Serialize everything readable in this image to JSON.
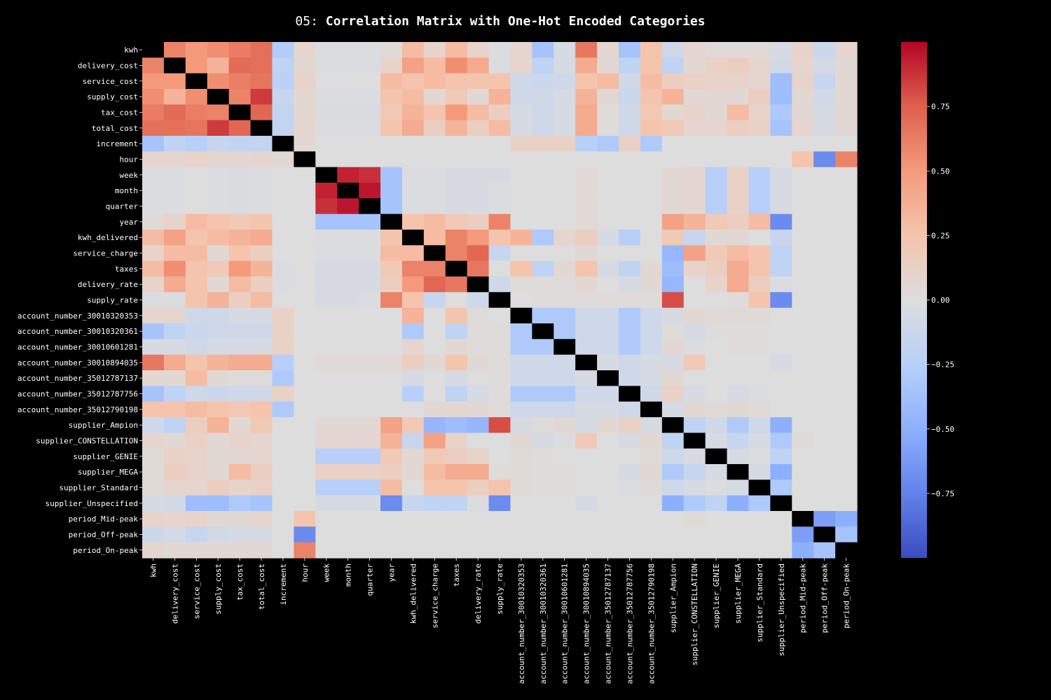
{
  "title_prefix": "05:",
  "title_main": "Correlation Matrix with One-Hot Encoded Categories",
  "chart_data": {
    "type": "heatmap",
    "title": "05: Correlation Matrix with One-Hot Encoded Categories",
    "colormap": "coolwarm",
    "diagonal_color": "#000000",
    "vmin": -1,
    "vmax": 1,
    "colorbar_ticks": [
      0.75,
      0.5,
      0.25,
      0.0,
      -0.25,
      -0.5,
      -0.75
    ],
    "colorbar_tick_labels": [
      "0.75",
      "0.50",
      "0.25",
      "0.00",
      "−0.25",
      "−0.50",
      "−0.75"
    ],
    "labels": [
      "kwh",
      "delivery_cost",
      "service_cost",
      "supply_cost",
      "tax_cost",
      "total_cost",
      "increment",
      "hour",
      "week",
      "month",
      "quarter",
      "year",
      "kwh_delivered",
      "service_charge",
      "taxes",
      "delivery_rate",
      "supply_rate",
      "account_number_30010320353",
      "account_number_30010320361",
      "account_number_30010601281",
      "account_number_30010894035",
      "account_number_35012787137",
      "account_number_35012787756",
      "account_number_35012790198",
      "supplier_Ampion",
      "supplier_CONSTELLATION",
      "supplier_GENIE",
      "supplier_MEGA",
      "supplier_Standard",
      "supplier_Unspecified",
      "period_Mid-peak",
      "period_Off-peak",
      "period_On-peak"
    ],
    "values": [
      [
        1,
        0.6,
        0.5,
        0.55,
        0.63,
        0.68,
        -0.28,
        0.08,
        -0.02,
        -0.02,
        -0.02,
        0.03,
        0.3,
        0.1,
        0.3,
        0.1,
        -0.02,
        0.08,
        -0.35,
        -0.05,
        0.65,
        0.06,
        -0.35,
        0.25,
        -0.1,
        0.08,
        0.03,
        0.03,
        0.03,
        -0.05,
        0.1,
        -0.12,
        0.08
      ],
      [
        0.6,
        1,
        0.5,
        0.35,
        0.7,
        0.68,
        -0.2,
        0.06,
        -0.02,
        -0.02,
        -0.02,
        0.1,
        0.45,
        0.3,
        0.55,
        0.4,
        -0.02,
        0.08,
        -0.2,
        -0.05,
        0.4,
        0.05,
        -0.2,
        0.25,
        -0.2,
        0.05,
        0.12,
        0.15,
        0.08,
        -0.08,
        0.08,
        -0.07,
        0.05
      ],
      [
        0.5,
        0.5,
        1,
        0.55,
        0.62,
        0.66,
        -0.23,
        0.1,
        0,
        0,
        0,
        0.3,
        0.25,
        0.3,
        0.25,
        0.25,
        0.25,
        -0.1,
        -0.12,
        -0.1,
        0.25,
        0.3,
        -0.1,
        0.3,
        0.15,
        0.12,
        0.1,
        0.1,
        0.08,
        -0.4,
        0.1,
        -0.15,
        0.05
      ],
      [
        0.55,
        0.35,
        0.55,
        1,
        0.6,
        0.85,
        -0.15,
        0.06,
        -0.02,
        -0.02,
        -0.02,
        0.25,
        0.3,
        0.05,
        0.2,
        0.05,
        0.35,
        -0.1,
        -0.1,
        -0.05,
        0.35,
        0.05,
        -0.12,
        0.25,
        0.35,
        0.05,
        0.05,
        0.05,
        0.15,
        -0.4,
        0.05,
        -0.08,
        0.05
      ],
      [
        0.63,
        0.7,
        0.62,
        0.6,
        1,
        0.72,
        -0.18,
        0.06,
        -0.03,
        -0.03,
        -0.03,
        0.2,
        0.35,
        0.25,
        0.5,
        0.3,
        0.15,
        -0.05,
        -0.1,
        -0.05,
        0.4,
        0.02,
        -0.1,
        0.22,
        0.05,
        0.1,
        0.05,
        0.3,
        0.1,
        -0.3,
        0.05,
        -0.05,
        0.05
      ],
      [
        0.68,
        0.68,
        0.66,
        0.85,
        0.72,
        1,
        -0.18,
        0.08,
        -0.02,
        -0.02,
        -0.02,
        0.25,
        0.4,
        0.15,
        0.35,
        0.15,
        0.3,
        -0.05,
        -0.1,
        -0.05,
        0.4,
        0.02,
        -0.1,
        0.25,
        0.2,
        0.08,
        0.08,
        0.15,
        0.12,
        -0.35,
        0.08,
        -0.05,
        0.05
      ],
      [
        -0.35,
        -0.2,
        -0.25,
        -0.15,
        -0.18,
        -0.18,
        1,
        0.05,
        0,
        0,
        0,
        0,
        0,
        0,
        0,
        0,
        0,
        0.12,
        0.12,
        0.12,
        -0.25,
        -0.3,
        0.12,
        -0.3,
        0,
        0,
        0,
        0,
        0,
        0,
        0,
        0,
        0
      ],
      [
        0.08,
        0.08,
        0.1,
        0.06,
        0.06,
        0.08,
        0.05,
        1,
        0,
        0,
        0,
        0,
        0,
        0,
        0,
        0,
        0,
        0,
        0,
        0,
        0,
        0,
        0,
        0,
        0,
        0,
        0,
        0,
        0,
        0,
        0.25,
        -0.7,
        0.6
      ],
      [
        -0.02,
        -0.02,
        0,
        -0.02,
        -0.03,
        -0.02,
        0,
        0,
        1,
        0.92,
        0.88,
        -0.35,
        -0.02,
        -0.02,
        -0.04,
        -0.04,
        -0.04,
        0,
        0,
        0,
        0.04,
        0,
        0,
        0,
        0.05,
        0.07,
        -0.25,
        0.12,
        -0.25,
        -0.05,
        0,
        0,
        0
      ],
      [
        -0.02,
        -0.02,
        0,
        -0.02,
        -0.03,
        -0.02,
        0,
        0,
        0.92,
        1,
        0.95,
        -0.35,
        -0.02,
        -0.02,
        -0.04,
        -0.04,
        -0.02,
        0,
        0,
        0,
        0.04,
        0,
        0,
        0,
        0.05,
        0.07,
        -0.25,
        0.12,
        -0.25,
        -0.05,
        0,
        0,
        0
      ],
      [
        -0.02,
        -0.02,
        0,
        -0.02,
        -0.03,
        -0.02,
        0,
        0,
        0.88,
        0.95,
        1,
        -0.35,
        -0.02,
        -0.02,
        -0.04,
        -0.04,
        -0.02,
        0,
        0,
        0,
        0.04,
        0,
        0,
        0,
        0.05,
        0.07,
        -0.25,
        0.12,
        -0.25,
        -0.05,
        0,
        0,
        0
      ],
      [
        0.03,
        0.1,
        0.3,
        0.25,
        0.2,
        0.25,
        0,
        0,
        -0.35,
        -0.35,
        -0.35,
        1,
        0.25,
        0.3,
        0.2,
        0.15,
        0.6,
        0,
        0,
        0,
        0.04,
        0,
        0,
        0,
        0.45,
        0.35,
        0.2,
        0.15,
        0.3,
        -0.7,
        0,
        0,
        0
      ],
      [
        0.3,
        0.45,
        0.25,
        0.3,
        0.35,
        0.4,
        0,
        0,
        -0.02,
        -0.02,
        -0.02,
        0.25,
        1,
        0.3,
        0.6,
        0.5,
        0.25,
        0.35,
        -0.3,
        0.08,
        0.15,
        -0.05,
        -0.25,
        0,
        0.2,
        -0.15,
        0.05,
        0.05,
        0,
        -0.15,
        0,
        0,
        0
      ],
      [
        0.1,
        0.3,
        0.3,
        0.05,
        0.25,
        0.15,
        0,
        0,
        -0.02,
        -0.02,
        -0.02,
        0.3,
        0.3,
        1,
        0.6,
        0.72,
        -0.15,
        0,
        0,
        0,
        0.05,
        0,
        0,
        0,
        -0.45,
        0.45,
        0.2,
        0.3,
        0.25,
        -0.2,
        0,
        0,
        0
      ],
      [
        0.3,
        0.55,
        0.25,
        0.2,
        0.5,
        0.35,
        -0.02,
        0,
        -0.04,
        -0.04,
        -0.04,
        0.2,
        0.6,
        0.6,
        1,
        0.65,
        0,
        0.25,
        -0.2,
        0.05,
        0.25,
        -0.05,
        -0.2,
        0.05,
        -0.4,
        0.1,
        0.15,
        0.4,
        0.25,
        -0.2,
        0,
        0,
        0
      ],
      [
        0.1,
        0.4,
        0.25,
        0.05,
        0.3,
        0.15,
        -0.02,
        0,
        -0.04,
        -0.04,
        -0.04,
        0.15,
        0.5,
        0.72,
        0.65,
        1,
        -0.1,
        0.02,
        0.02,
        0.02,
        0.05,
        0,
        -0.05,
        0.05,
        -0.45,
        0,
        0.1,
        0.4,
        0.15,
        -0.02,
        0,
        0,
        0
      ],
      [
        -0.02,
        -0.02,
        0.25,
        0.35,
        0.15,
        0.3,
        0,
        0,
        -0.04,
        -0.04,
        -0.02,
        0.6,
        0.25,
        -0.15,
        0,
        -0.1,
        1,
        0,
        0.02,
        0.02,
        0.02,
        0.02,
        0.02,
        0.02,
        0.8,
        0,
        0,
        0.02,
        0.25,
        -0.7,
        0,
        0,
        0
      ],
      [
        0.08,
        0.08,
        -0.1,
        -0.1,
        -0.05,
        -0.05,
        0.12,
        0,
        0,
        0,
        0,
        0,
        0.35,
        0,
        0.25,
        0.02,
        0,
        1,
        -0.3,
        -0.3,
        -0.1,
        -0.1,
        -0.3,
        -0.1,
        -0.05,
        0.05,
        0.03,
        0.03,
        0.03,
        0,
        0,
        0,
        0
      ],
      [
        -0.35,
        -0.2,
        -0.12,
        -0.1,
        -0.1,
        -0.1,
        0.12,
        0,
        0,
        0,
        0,
        0,
        -0.3,
        0,
        -0.2,
        0.02,
        0.02,
        -0.3,
        1,
        -0.3,
        -0.1,
        -0.1,
        -0.3,
        -0.1,
        0.02,
        -0.05,
        0.02,
        0.02,
        0.02,
        0,
        0,
        0,
        0
      ],
      [
        -0.05,
        -0.05,
        -0.1,
        -0.05,
        -0.05,
        -0.05,
        0.12,
        0,
        0,
        0,
        0,
        0,
        0.08,
        0,
        0.05,
        0.02,
        0.02,
        -0.3,
        -0.3,
        1,
        -0.1,
        -0.1,
        -0.3,
        -0.1,
        0.05,
        -0.02,
        0,
        0.02,
        0.02,
        0,
        0,
        0,
        0
      ],
      [
        0.65,
        0.4,
        0.25,
        0.35,
        0.4,
        0.4,
        -0.25,
        0,
        0.04,
        0.04,
        0.04,
        0.04,
        0.15,
        0.05,
        0.25,
        0.05,
        0.02,
        -0.1,
        -0.1,
        -0.1,
        1,
        -0.05,
        -0.1,
        -0.05,
        -0.05,
        0.2,
        0,
        0,
        0,
        -0.05,
        0,
        0,
        0
      ],
      [
        0.06,
        0.05,
        0.3,
        0.05,
        0.02,
        0.02,
        -0.3,
        0,
        0,
        0,
        0,
        0,
        -0.05,
        0,
        -0.05,
        0,
        0.02,
        -0.1,
        -0.1,
        -0.1,
        -0.05,
        1,
        -0.1,
        -0.05,
        0.05,
        0,
        0,
        0,
        0,
        0,
        0,
        0,
        0
      ],
      [
        -0.35,
        -0.2,
        -0.1,
        -0.12,
        -0.1,
        -0.1,
        0.12,
        0,
        0,
        0,
        0,
        0,
        -0.25,
        0,
        -0.2,
        -0.05,
        0.02,
        -0.3,
        -0.3,
        -0.3,
        -0.1,
        -0.1,
        1,
        -0.1,
        0.12,
        -0.05,
        0,
        -0.05,
        -0.02,
        0,
        0,
        0,
        0
      ],
      [
        0.25,
        0.25,
        0.3,
        0.25,
        0.22,
        0.25,
        -0.3,
        0,
        0,
        0,
        0,
        0,
        0,
        0.05,
        0.05,
        0.05,
        0.02,
        -0.1,
        -0.1,
        -0.1,
        -0.05,
        -0.05,
        -0.1,
        1,
        -0.05,
        0.05,
        0.03,
        0.05,
        0.03,
        0,
        0,
        0,
        0
      ],
      [
        -0.1,
        -0.2,
        0.15,
        0.35,
        0.05,
        0.2,
        0,
        0,
        0.05,
        0.05,
        0.05,
        0.45,
        0.2,
        -0.45,
        -0.4,
        -0.45,
        0.8,
        -0.05,
        0.02,
        0.05,
        -0.05,
        0.05,
        0.12,
        -0.05,
        1,
        -0.2,
        -0.1,
        -0.3,
        -0.1,
        -0.5,
        0,
        0,
        0
      ],
      [
        0.08,
        0.05,
        0.12,
        0.05,
        0.1,
        0.08,
        0,
        0,
        0.07,
        0.07,
        0.07,
        0.35,
        -0.15,
        0.45,
        0.1,
        0,
        0,
        0.05,
        -0.05,
        -0.02,
        0.2,
        0,
        -0.05,
        0.05,
        -0.2,
        1,
        -0.05,
        -0.15,
        -0.05,
        -0.3,
        0.03,
        0,
        0
      ],
      [
        0.03,
        0.12,
        0.1,
        0.05,
        0.05,
        0.08,
        0,
        0,
        -0.25,
        -0.25,
        -0.25,
        0.2,
        0.05,
        0.2,
        0.15,
        0.1,
        0,
        0.03,
        0.02,
        0,
        0,
        0,
        0,
        0.03,
        -0.1,
        -0.05,
        1,
        -0.05,
        -0.02,
        -0.2,
        0,
        0,
        0
      ],
      [
        0.03,
        0.15,
        0.1,
        0.05,
        0.3,
        0.15,
        0,
        0,
        0.12,
        0.12,
        0.12,
        0.15,
        0.05,
        0.3,
        0.4,
        0.4,
        0.02,
        0.03,
        0.02,
        0.02,
        0,
        0,
        -0.05,
        0.05,
        -0.3,
        -0.15,
        -0.05,
        1,
        -0.05,
        -0.5,
        0,
        0,
        0
      ],
      [
        0.03,
        0.08,
        0.08,
        0.15,
        0.1,
        0.12,
        0,
        0,
        -0.25,
        -0.25,
        -0.25,
        0.3,
        0,
        0.25,
        0.25,
        0.15,
        0.25,
        0.03,
        0.02,
        0.02,
        0,
        0,
        -0.02,
        0.03,
        -0.1,
        -0.05,
        -0.02,
        -0.05,
        1,
        -0.3,
        0,
        0,
        0
      ],
      [
        -0.05,
        -0.08,
        -0.4,
        -0.4,
        -0.3,
        -0.35,
        0,
        0,
        -0.05,
        -0.05,
        -0.05,
        -0.7,
        -0.15,
        -0.2,
        -0.2,
        -0.02,
        -0.7,
        0,
        0,
        0,
        -0.05,
        0,
        0,
        0,
        -0.5,
        -0.3,
        -0.2,
        -0.5,
        -0.3,
        1,
        0,
        0,
        0
      ],
      [
        0.1,
        0.08,
        0.1,
        0.05,
        0.05,
        0.08,
        0,
        0.25,
        0,
        0,
        0,
        0,
        0,
        0,
        0,
        0,
        0,
        0,
        0,
        0,
        0,
        0,
        0,
        0,
        0,
        0.03,
        0,
        0,
        0,
        0,
        1,
        -0.6,
        -0.5
      ],
      [
        -0.12,
        -0.07,
        -0.15,
        -0.08,
        -0.05,
        -0.05,
        0,
        -0.7,
        0,
        0,
        0,
        0,
        0,
        0,
        0,
        0,
        0,
        0,
        0,
        0,
        0,
        0,
        0,
        0,
        0,
        0,
        0,
        0,
        0,
        0,
        -0.6,
        1,
        -0.35
      ],
      [
        0.08,
        0.05,
        0.05,
        0.05,
        0.05,
        0.05,
        0,
        0.6,
        0,
        0,
        0,
        0,
        0,
        0,
        0,
        0,
        0,
        0,
        0,
        0,
        0,
        0,
        0,
        0,
        0,
        0,
        0,
        0,
        0,
        0,
        -0.5,
        -0.35,
        1
      ]
    ]
  }
}
